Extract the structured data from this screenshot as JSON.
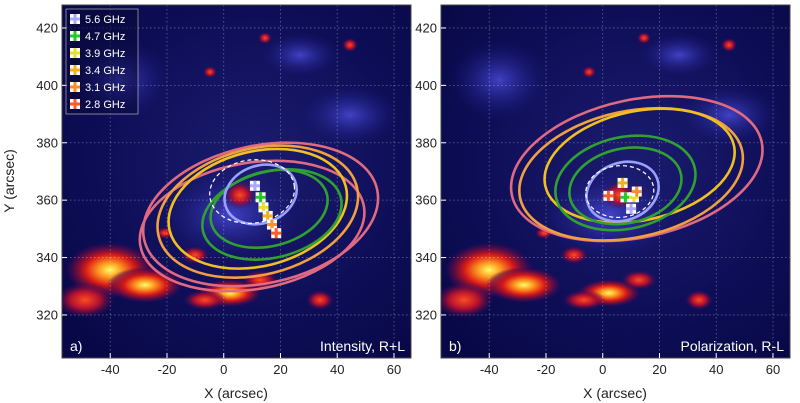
{
  "chart_data": [
    {
      "type": "scatter",
      "panel_tag": "a)",
      "panel_text": "Intensity, R+L",
      "xlabel": "X (arcsec)",
      "ylabel": "Y (arcsec)",
      "xlim": [
        -57,
        66
      ],
      "ylim": [
        305,
        428
      ],
      "xticks": [
        -40,
        -20,
        0,
        20,
        40,
        60
      ],
      "yticks": [
        320,
        340,
        360,
        380,
        400,
        420
      ],
      "grid": true,
      "legend_position": "top-left",
      "series": [
        {
          "name": "5.6 GHz",
          "color": "#a8a8ff",
          "points": [
            [
              11,
              365
            ]
          ]
        },
        {
          "name": "4.7 GHz",
          "color": "#22cc22",
          "points": [
            [
              13,
              361
            ]
          ]
        },
        {
          "name": "3.9 GHz",
          "color": "#e8e030",
          "points": [
            [
              14,
              357.5
            ]
          ]
        },
        {
          "name": "3.4 GHz",
          "color": "#f0b020",
          "points": [
            [
              15.5,
              354.5
            ]
          ]
        },
        {
          "name": "3.1 GHz",
          "color": "#ff8c2a",
          "points": [
            [
              17,
              351.5
            ]
          ]
        },
        {
          "name": "2.8 GHz",
          "color": "#ff5a2a",
          "points": [
            [
              18.5,
              348.5
            ]
          ]
        }
      ],
      "contours": [
        {
          "color": "#e06a80",
          "center": [
            13,
            355
          ],
          "rx": 42,
          "ry": 24,
          "rotation": -12
        },
        {
          "color": "#e06a80",
          "center": [
            10,
            351
          ],
          "rx": 40,
          "ry": 22,
          "rotation": -10
        },
        {
          "color": "#f0a040",
          "center": [
            12,
            356
          ],
          "rx": 36,
          "ry": 22,
          "rotation": -14
        },
        {
          "color": "#f0c020",
          "center": [
            12,
            357
          ],
          "rx": 32,
          "ry": 20,
          "rotation": -14
        },
        {
          "color": "#30a030",
          "center": [
            17,
            355
          ],
          "rx": 25,
          "ry": 15,
          "rotation": -14
        },
        {
          "color": "#30a030",
          "center": [
            16,
            357
          ],
          "rx": 21,
          "ry": 13,
          "rotation": -14
        },
        {
          "color": "#9aa0ff",
          "center": [
            13,
            362
          ],
          "rx": 13,
          "ry": 10,
          "rotation": -20
        },
        {
          "color": "#ffffff",
          "center": [
            10,
            363
          ],
          "rx": 15,
          "ry": 11,
          "rotation": -8,
          "dashed": true
        }
      ]
    },
    {
      "type": "scatter",
      "panel_tag": "b)",
      "panel_text": "Polarization, R-L",
      "xlabel": "X (arcsec)",
      "ylabel": "",
      "xlim": [
        -57,
        66
      ],
      "ylim": [
        305,
        428
      ],
      "xticks": [
        -40,
        -20,
        0,
        20,
        40,
        60
      ],
      "yticks": [
        320,
        340,
        360,
        380,
        400,
        420
      ],
      "grid": true,
      "series": [
        {
          "name": "5.6 GHz",
          "color": "#a8a8ff",
          "points": [
            [
              10,
              357
            ]
          ]
        },
        {
          "name": "4.7 GHz",
          "color": "#22cc22",
          "points": [
            [
              8,
              361
            ]
          ]
        },
        {
          "name": "3.9 GHz",
          "color": "#e8e030",
          "points": [
            [
              11,
              361
            ]
          ]
        },
        {
          "name": "3.4 GHz",
          "color": "#f0b020",
          "points": [
            [
              7,
              366
            ]
          ]
        },
        {
          "name": "3.1 GHz",
          "color": "#ff8c2a",
          "points": [
            [
              12,
              363
            ]
          ]
        },
        {
          "name": "2.8 GHz",
          "color": "#ff5a2a",
          "points": [
            [
              2,
              361.5
            ]
          ]
        }
      ],
      "contours": [
        {
          "color": "#e06a80",
          "center": [
            12,
            371
          ],
          "rx": 45,
          "ry": 24,
          "rotation": -12
        },
        {
          "color": "#f0a040",
          "center": [
            10,
            369
          ],
          "rx": 40,
          "ry": 22,
          "rotation": -12
        },
        {
          "color": "#f0c020",
          "center": [
            13,
            372
          ],
          "rx": 34,
          "ry": 19,
          "rotation": -12
        },
        {
          "color": "#30a030",
          "center": [
            8,
            366
          ],
          "rx": 25,
          "ry": 16,
          "rotation": -12
        },
        {
          "color": "#30a030",
          "center": [
            8,
            365
          ],
          "rx": 20,
          "ry": 13,
          "rotation": -12
        },
        {
          "color": "#9aa0ff",
          "center": [
            7,
            363
          ],
          "rx": 13,
          "ry": 10,
          "rotation": -20
        },
        {
          "color": "#ffffff",
          "center": [
            6,
            363
          ],
          "rx": 12,
          "ry": 9,
          "rotation": -5,
          "dashed": true
        }
      ]
    }
  ]
}
